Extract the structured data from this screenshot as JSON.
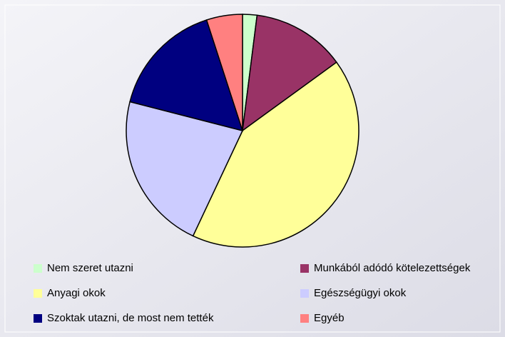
{
  "chart_data": {
    "type": "pie",
    "categories": [
      "Nem szeret utazni",
      "Munkából adódó kötelezettségek",
      "Anyagi okok",
      "Egészségügyi okok",
      "Szoktak utazni, de most nem tették",
      "Egyéb"
    ],
    "values": [
      2,
      13,
      42,
      22,
      16,
      5
    ],
    "colors": [
      "#ccffcc",
      "#993366",
      "#ffff99",
      "#ccccff",
      "#000080",
      "#ff8080"
    ]
  }
}
